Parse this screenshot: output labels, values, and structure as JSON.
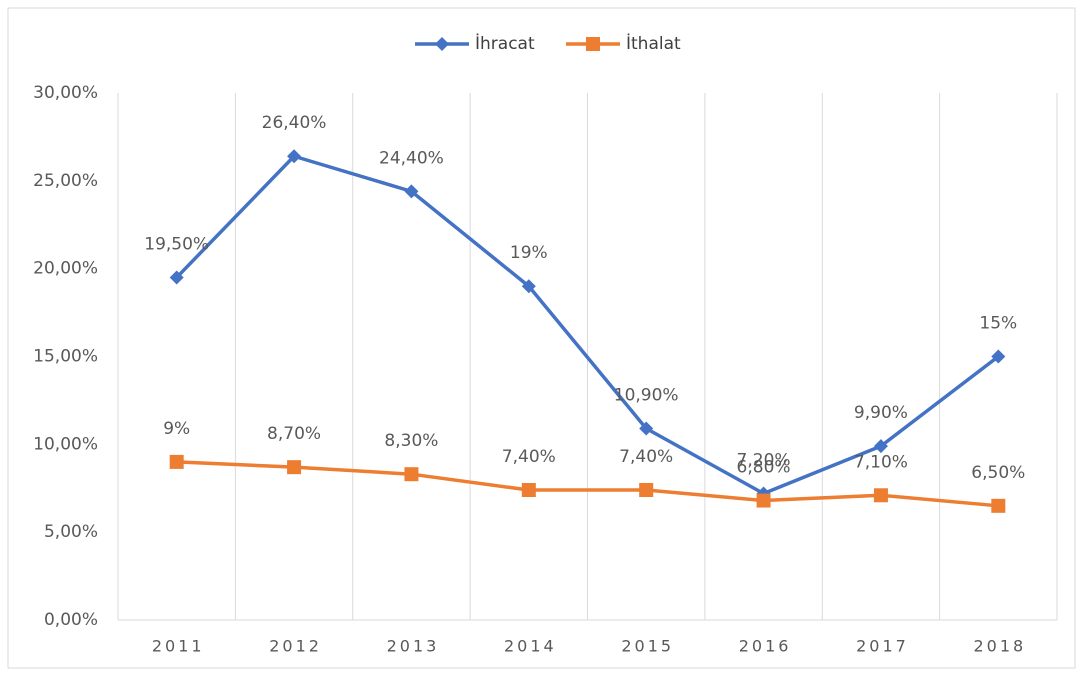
{
  "chart_data": {
    "type": "line",
    "categories": [
      "2011",
      "2012",
      "2013",
      "2014",
      "2015",
      "2016",
      "2017",
      "2018"
    ],
    "series": [
      {
        "name": "İhracat",
        "color": "#4472c4",
        "marker": "diamond",
        "values": [
          19.5,
          26.4,
          24.4,
          19,
          10.9,
          7.2,
          9.9,
          15
        ],
        "value_labels": [
          "19,50%",
          "26,40%",
          "24,40%",
          "19%",
          "10,90%",
          "7,20%",
          "9,90%",
          "15%"
        ]
      },
      {
        "name": "İthalat",
        "color": "#ed7d31",
        "marker": "square",
        "values": [
          9,
          8.7,
          8.3,
          7.4,
          7.4,
          6.8,
          7.1,
          6.5
        ],
        "value_labels": [
          "9%",
          "8,70%",
          "8,30%",
          "7,40%",
          "7,40%",
          "6,80%",
          "7,10%",
          "6,50%"
        ]
      }
    ],
    "ylim": [
      0,
      30
    ],
    "yticks": [
      {
        "value": 0,
        "label": "0,00%"
      },
      {
        "value": 5,
        "label": "5,00%"
      },
      {
        "value": 10,
        "label": "10,00%"
      },
      {
        "value": 15,
        "label": "15,00%"
      },
      {
        "value": 20,
        "label": "20,00%"
      },
      {
        "value": 25,
        "label": "25,00%"
      },
      {
        "value": 30,
        "label": "30,00%"
      }
    ],
    "legend": "top"
  }
}
